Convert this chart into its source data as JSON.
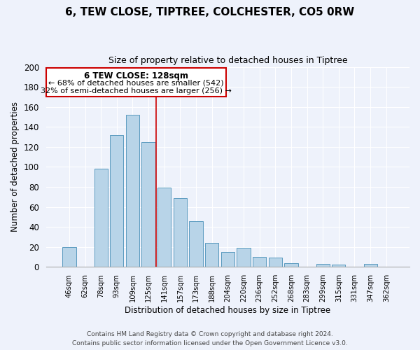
{
  "title": "6, TEW CLOSE, TIPTREE, COLCHESTER, CO5 0RW",
  "subtitle": "Size of property relative to detached houses in Tiptree",
  "xlabel": "Distribution of detached houses by size in Tiptree",
  "ylabel": "Number of detached properties",
  "bar_color": "#b8d4e8",
  "bar_edge_color": "#5a9abf",
  "background_color": "#eef2fb",
  "grid_color": "#ffffff",
  "categories": [
    "46sqm",
    "62sqm",
    "78sqm",
    "93sqm",
    "109sqm",
    "125sqm",
    "141sqm",
    "157sqm",
    "173sqm",
    "188sqm",
    "204sqm",
    "220sqm",
    "236sqm",
    "252sqm",
    "268sqm",
    "283sqm",
    "299sqm",
    "315sqm",
    "331sqm",
    "347sqm",
    "362sqm"
  ],
  "values": [
    20,
    0,
    98,
    132,
    152,
    125,
    79,
    69,
    46,
    24,
    15,
    19,
    10,
    9,
    4,
    0,
    3,
    2,
    0,
    3,
    0
  ],
  "ylim": [
    0,
    200
  ],
  "yticks": [
    0,
    20,
    40,
    60,
    80,
    100,
    120,
    140,
    160,
    180,
    200
  ],
  "vline_x": 5.5,
  "vline_color": "#cc0000",
  "annotation_title": "6 TEW CLOSE: 128sqm",
  "annotation_line1": "← 68% of detached houses are smaller (542)",
  "annotation_line2": "32% of semi-detached houses are larger (256) →",
  "annotation_box_color": "#ffffff",
  "annotation_box_edge": "#cc0000",
  "footer_line1": "Contains HM Land Registry data © Crown copyright and database right 2024.",
  "footer_line2": "Contains public sector information licensed under the Open Government Licence v3.0."
}
